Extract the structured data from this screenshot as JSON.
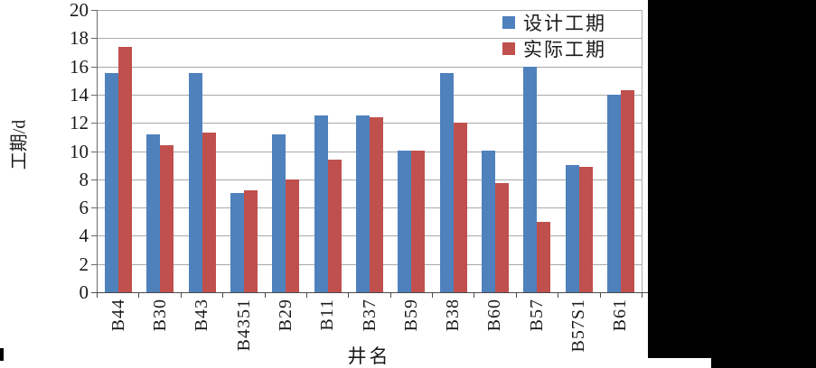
{
  "chart_data": {
    "type": "bar",
    "title": "",
    "xlabel": "井名",
    "ylabel": "工期/d",
    "ylim": [
      0,
      20
    ],
    "ytick_step": 2,
    "yticks": [
      20,
      18,
      16,
      14,
      12,
      10,
      8,
      6,
      4,
      2,
      0
    ],
    "grid": true,
    "legend_position": "top-right-inside",
    "categories": [
      "B44",
      "B30",
      "B43",
      "B4351",
      "B29",
      "B11",
      "B37",
      "B59",
      "B38",
      "B60",
      "B57",
      "B57S1",
      "B61"
    ],
    "series": [
      {
        "name": "设计工期",
        "color": "#4F81BD",
        "values": [
          15.5,
          11.2,
          15.5,
          7.0,
          11.2,
          12.5,
          12.5,
          10.0,
          15.5,
          10.0,
          16.0,
          9.0,
          14.0
        ]
      },
      {
        "name": "实际工期",
        "color": "#C0504D",
        "values": [
          17.4,
          10.4,
          11.3,
          7.2,
          8.0,
          9.4,
          12.4,
          10.0,
          12.0,
          7.7,
          5.0,
          8.9,
          14.3
        ]
      }
    ]
  },
  "colors": {
    "background": "#000000",
    "paper": "#ffffff",
    "gridline": "#a8a8a8",
    "axis": "#4a4a4a"
  }
}
